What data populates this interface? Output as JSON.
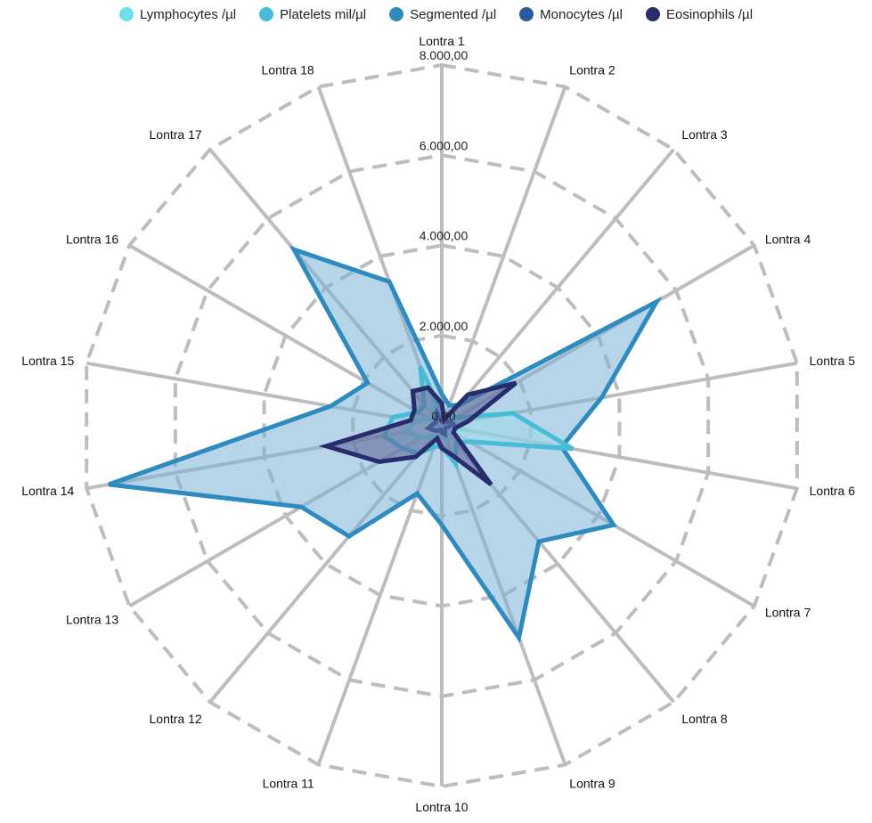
{
  "chart_data": {
    "type": "radar",
    "categories": [
      "Lontra 1",
      "Lontra 2",
      "Lontra 3",
      "Lontra 4",
      "Lontra 5",
      "Lontra 6",
      "Lontra 7",
      "Lontra 8",
      "Lontra 9",
      "Lontra 10",
      "Lontra 11",
      "Lontra 12",
      "Lontra 13",
      "Lontra 14",
      "Lontra 15",
      "Lontra 16",
      "Lontra 17",
      "Lontra 18"
    ],
    "rmax": 8000,
    "ticks": [
      0,
      2000,
      4000,
      6000,
      8000
    ],
    "tick_labels": [
      "0,00",
      "2.000,00",
      "4.000,00",
      "6.000,00",
      "8.000,00"
    ],
    "grid": true,
    "legend_position": "top",
    "series": [
      {
        "name": "Segmented /µl",
        "color": "#2e8bc0",
        "fill": "#7ab3d6",
        "values": [
          700,
          480,
          600,
          5500,
          3600,
          2700,
          4400,
          3350,
          5000,
          2200,
          1600,
          3200,
          3600,
          7500,
          2500,
          1900,
          5100,
          3400
        ]
      },
      {
        "name": "Platelets mil/µl",
        "color": "#46bcd6",
        "fill": "#9fdcea",
        "values": [
          300,
          200,
          300,
          350,
          1600,
          2950,
          700,
          500,
          900,
          450,
          500,
          800,
          1000,
          1300,
          1100,
          600,
          600,
          1400
        ]
      },
      {
        "name": "Lymphocytes /µl",
        "color": "#6ee0e6",
        "fill": "#bdf0f3",
        "values": [
          200,
          150,
          180,
          250,
          300,
          400,
          300,
          200,
          300,
          200,
          250,
          300,
          500,
          800,
          600,
          300,
          300,
          500
        ]
      },
      {
        "name": "Monocytes /µl",
        "color": "#2a5aa0",
        "fill": "#6c8fc2",
        "values": [
          100,
          80,
          100,
          200,
          250,
          150,
          100,
          100,
          200,
          150,
          100,
          150,
          200,
          300,
          200,
          150,
          200,
          300
        ]
      },
      {
        "name": "Eosinophils /µl",
        "color": "#262c6c",
        "fill": "#5c6092",
        "values": [
          500,
          150,
          900,
          1900,
          600,
          300,
          300,
          1700,
          700,
          500,
          300,
          900,
          1600,
          2600,
          700,
          700,
          1000,
          900
        ]
      }
    ],
    "legend": [
      {
        "name": "Lymphocytes /µl",
        "color": "#6ee0e6"
      },
      {
        "name": "Platelets mil/µl",
        "color": "#46bcd6"
      },
      {
        "name": "Segmented /µl",
        "color": "#2e8bc0"
      },
      {
        "name": "Monocytes /µl",
        "color": "#2a5aa0"
      },
      {
        "name": "Eosinophils /µl",
        "color": "#262c6c"
      }
    ]
  }
}
